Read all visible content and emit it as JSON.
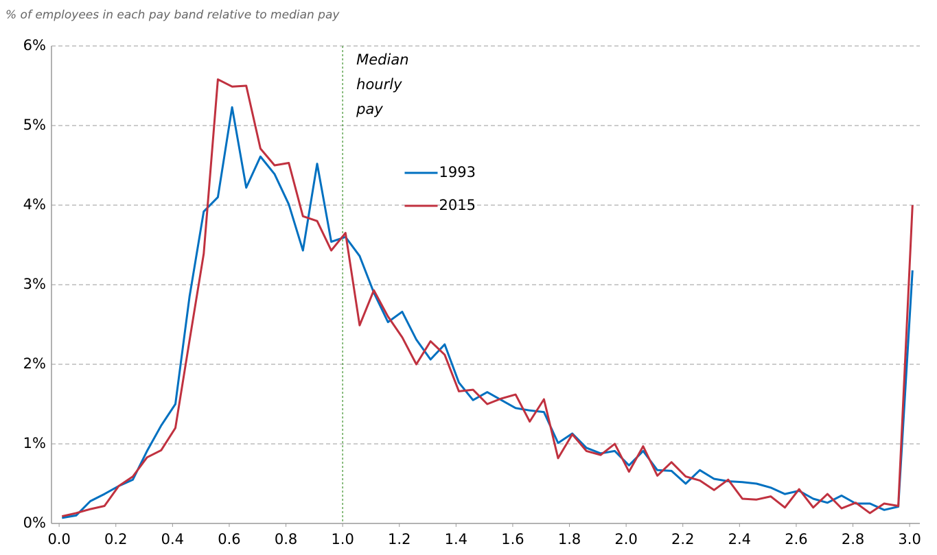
{
  "chart_data": {
    "type": "line",
    "subtitle": "% of employees in each pay band relative to median pay",
    "x": [
      0.01,
      0.06,
      0.11,
      0.16,
      0.21,
      0.26,
      0.31,
      0.36,
      0.41,
      0.46,
      0.51,
      0.56,
      0.61,
      0.66,
      0.71,
      0.76,
      0.81,
      0.86,
      0.91,
      0.96,
      1.01,
      1.06,
      1.11,
      1.16,
      1.21,
      1.26,
      1.31,
      1.36,
      1.41,
      1.46,
      1.51,
      1.56,
      1.61,
      1.66,
      1.71,
      1.76,
      1.81,
      1.86,
      1.91,
      1.96,
      2.01,
      2.06,
      2.11,
      2.16,
      2.21,
      2.26,
      2.31,
      2.36,
      2.41,
      2.46,
      2.51,
      2.56,
      2.61,
      2.66,
      2.71,
      2.76,
      2.81,
      2.86,
      2.91,
      2.96,
      3.01
    ],
    "series": [
      {
        "name": "1993",
        "color": "#0070c0",
        "values": [
          0.07,
          0.1,
          0.28,
          0.37,
          0.47,
          0.55,
          0.91,
          1.23,
          1.5,
          2.85,
          3.92,
          4.1,
          5.23,
          4.22,
          4.61,
          4.39,
          4.01,
          3.43,
          4.52,
          3.54,
          3.6,
          3.36,
          2.9,
          2.53,
          2.66,
          2.31,
          2.06,
          2.25,
          1.77,
          1.55,
          1.65,
          1.55,
          1.45,
          1.42,
          1.4,
          1.01,
          1.13,
          0.95,
          0.88,
          0.91,
          0.73,
          0.91,
          0.67,
          0.66,
          0.5,
          0.67,
          0.56,
          0.53,
          0.52,
          0.5,
          0.45,
          0.37,
          0.41,
          0.31,
          0.26,
          0.35,
          0.25,
          0.25,
          0.17,
          0.21,
          3.18
        ]
      },
      {
        "name": "2015",
        "color": "#c0313f",
        "values": [
          0.09,
          0.13,
          0.18,
          0.22,
          0.47,
          0.59,
          0.83,
          0.92,
          1.2,
          2.3,
          3.39,
          5.58,
          5.49,
          5.5,
          4.71,
          4.5,
          4.53,
          3.86,
          3.8,
          3.43,
          3.65,
          2.49,
          2.93,
          2.6,
          2.34,
          2.0,
          2.29,
          2.12,
          1.66,
          1.68,
          1.5,
          1.57,
          1.62,
          1.28,
          1.56,
          0.82,
          1.12,
          0.91,
          0.86,
          1.0,
          0.65,
          0.97,
          0.6,
          0.77,
          0.59,
          0.54,
          0.42,
          0.55,
          0.31,
          0.3,
          0.34,
          0.2,
          0.43,
          0.2,
          0.37,
          0.19,
          0.26,
          0.13,
          0.25,
          0.22,
          4.0
        ]
      }
    ],
    "xlim": [
      -0.027,
      3.036
    ],
    "ylim": [
      0,
      6
    ],
    "xticks": [
      {
        "value": 0,
        "label": "0.0"
      },
      0.2,
      0.4,
      0.6,
      0.8,
      {
        "value": 1,
        "label": "1.0"
      },
      1.2,
      1.4,
      1.6,
      1.8,
      {
        "value": 2,
        "label": "2.0"
      },
      2.2,
      2.4,
      2.6,
      2.8,
      {
        "value": 3,
        "label": "3.0"
      }
    ],
    "yticks": [
      {
        "value": 0,
        "label": "0%"
      },
      {
        "value": 1,
        "label": "1%"
      },
      {
        "value": 2,
        "label": "2%"
      },
      {
        "value": 3,
        "label": "3%"
      },
      {
        "value": 4,
        "label": "4%"
      },
      {
        "value": 5,
        "label": "5%"
      },
      {
        "value": 6,
        "label": "6%"
      }
    ],
    "grid": true,
    "legend": "center",
    "annotation": {
      "x": 1,
      "color": "#4a9a3a",
      "lines": [
        "Median",
        "hourly",
        "pay"
      ]
    }
  }
}
